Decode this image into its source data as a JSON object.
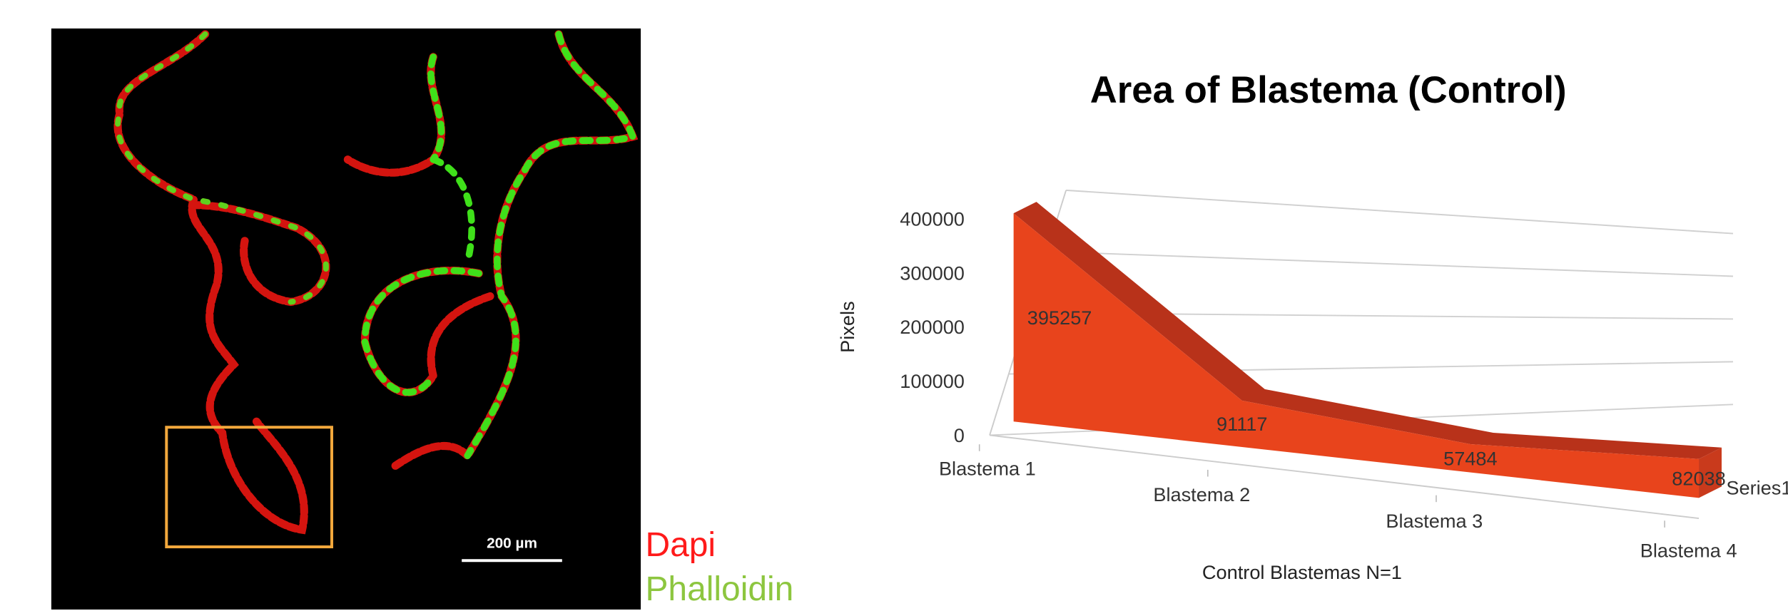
{
  "micrograph": {
    "scale_bar": "200 µm",
    "channels": [
      {
        "name": "Dapi",
        "color": "#ff1a1a"
      },
      {
        "name": "Phalloidin",
        "color": "#8dc63f"
      }
    ]
  },
  "chart_data": {
    "type": "area3d",
    "title": "Area of Blastema (Control)",
    "x_label": "Control Blastemas N=1",
    "y_label": "Pixels",
    "categories": [
      "Blastema 1",
      "Blastema 2",
      "Blastema 3",
      "Blastema 4"
    ],
    "series": [
      {
        "name": "Series1",
        "color": "#e8441c",
        "values": [
          395257,
          91117,
          57484,
          82038
        ]
      }
    ],
    "ylim": [
      0,
      400000
    ],
    "yticks": [
      0,
      100000,
      200000,
      300000,
      400000
    ],
    "grid": true
  }
}
